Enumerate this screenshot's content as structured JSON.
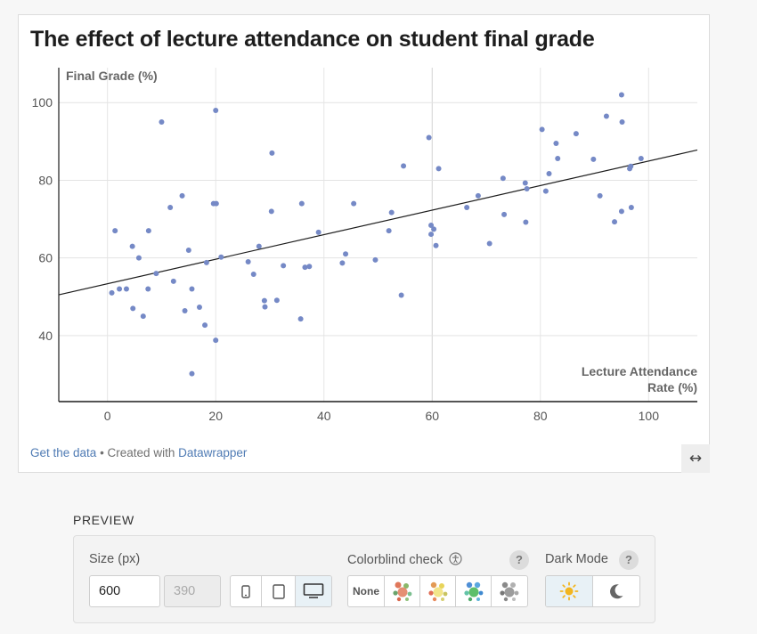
{
  "chart_data": {
    "type": "scatter",
    "title": "The effect of lecture attendance on student final grade",
    "ylabel": "Final Grade (%)",
    "xlabel_lines": [
      "Lecture Attendance",
      "Rate (%)"
    ],
    "xlim": [
      -9,
      109
    ],
    "ylim": [
      23,
      109
    ],
    "x_ticks": [
      0,
      20,
      40,
      60,
      80,
      100
    ],
    "y_ticks": [
      40,
      60,
      80,
      100
    ],
    "grid": true,
    "point_color": "#7589c6",
    "trendline": {
      "x": [
        -9,
        109
      ],
      "y": [
        50.5,
        87.8
      ]
    },
    "points": [
      [
        0.8,
        51
      ],
      [
        1.4,
        67
      ],
      [
        2.2,
        52
      ],
      [
        3.5,
        52
      ],
      [
        4.6,
        63
      ],
      [
        4.7,
        47
      ],
      [
        5.8,
        60
      ],
      [
        6.6,
        45
      ],
      [
        7.5,
        52
      ],
      [
        7.6,
        67
      ],
      [
        9,
        56
      ],
      [
        10,
        95
      ],
      [
        11.6,
        73
      ],
      [
        12.2,
        54
      ],
      [
        13.8,
        76
      ],
      [
        14.3,
        46.4
      ],
      [
        15,
        62
      ],
      [
        15.6,
        52
      ],
      [
        15.6,
        30.2
      ],
      [
        17,
        47.3
      ],
      [
        18,
        42.7
      ],
      [
        18.3,
        58.8
      ],
      [
        19.6,
        74
      ],
      [
        20,
        38.8
      ],
      [
        20.1,
        74
      ],
      [
        20,
        98
      ],
      [
        21,
        60.2
      ],
      [
        26,
        59
      ],
      [
        27,
        55.8
      ],
      [
        28,
        63
      ],
      [
        29,
        49
      ],
      [
        29.1,
        47.4
      ],
      [
        30.3,
        72
      ],
      [
        30.4,
        87
      ],
      [
        31.3,
        49.1
      ],
      [
        32.5,
        58
      ],
      [
        35.7,
        44.3
      ],
      [
        35.9,
        74
      ],
      [
        36.5,
        57.6
      ],
      [
        37.3,
        57.8
      ],
      [
        39,
        66.6
      ],
      [
        43.4,
        58.7
      ],
      [
        44,
        61
      ],
      [
        45.5,
        74
      ],
      [
        49.5,
        59.5
      ],
      [
        52,
        67
      ],
      [
        52.5,
        71.7
      ],
      [
        54.3,
        50.4
      ],
      [
        54.7,
        83.7
      ],
      [
        59.4,
        91
      ],
      [
        59.8,
        68.4
      ],
      [
        59.8,
        66.1
      ],
      [
        60.3,
        67.4
      ],
      [
        60.7,
        63.2
      ],
      [
        61.2,
        83
      ],
      [
        66.4,
        73
      ],
      [
        68.5,
        76
      ],
      [
        70.6,
        63.7
      ],
      [
        73.1,
        80.5
      ],
      [
        73.3,
        71.2
      ],
      [
        77.2,
        79.3
      ],
      [
        77.3,
        69.2
      ],
      [
        77.5,
        77.8
      ],
      [
        80.3,
        93.1
      ],
      [
        81,
        77.2
      ],
      [
        81.6,
        81.7
      ],
      [
        82.9,
        89.5
      ],
      [
        83.2,
        85.6
      ],
      [
        86.6,
        92
      ],
      [
        89.8,
        85.4
      ],
      [
        91,
        76
      ],
      [
        92.2,
        96.5
      ],
      [
        93.7,
        69.3
      ],
      [
        95,
        102
      ],
      [
        95,
        72
      ],
      [
        95.1,
        95
      ],
      [
        96.5,
        83
      ],
      [
        96.7,
        83.6
      ],
      [
        96.8,
        73
      ],
      [
        98.6,
        85.6
      ]
    ]
  },
  "footer": {
    "get_data": "Get the data",
    "separator": " • Created with ",
    "datawrapper": "Datawrapper"
  },
  "resize_icon": "↔",
  "preview": {
    "heading": "PREVIEW",
    "size_label": "Size (px)",
    "width_value": "600",
    "height_placeholder": "390",
    "devices": [
      "phone-icon",
      "tablet-icon",
      "desktop-icon"
    ],
    "active_device": "desktop",
    "colorblind_label": "Colorblind check",
    "colorblind_options": [
      "None",
      "protanopia",
      "deuteranopia",
      "tritanopia",
      "achromatopsia"
    ],
    "colorblind_none_label": "None",
    "help": "?",
    "dark_mode_label": "Dark Mode",
    "dark_mode_options": [
      "sun-icon",
      "moon-icon"
    ]
  }
}
